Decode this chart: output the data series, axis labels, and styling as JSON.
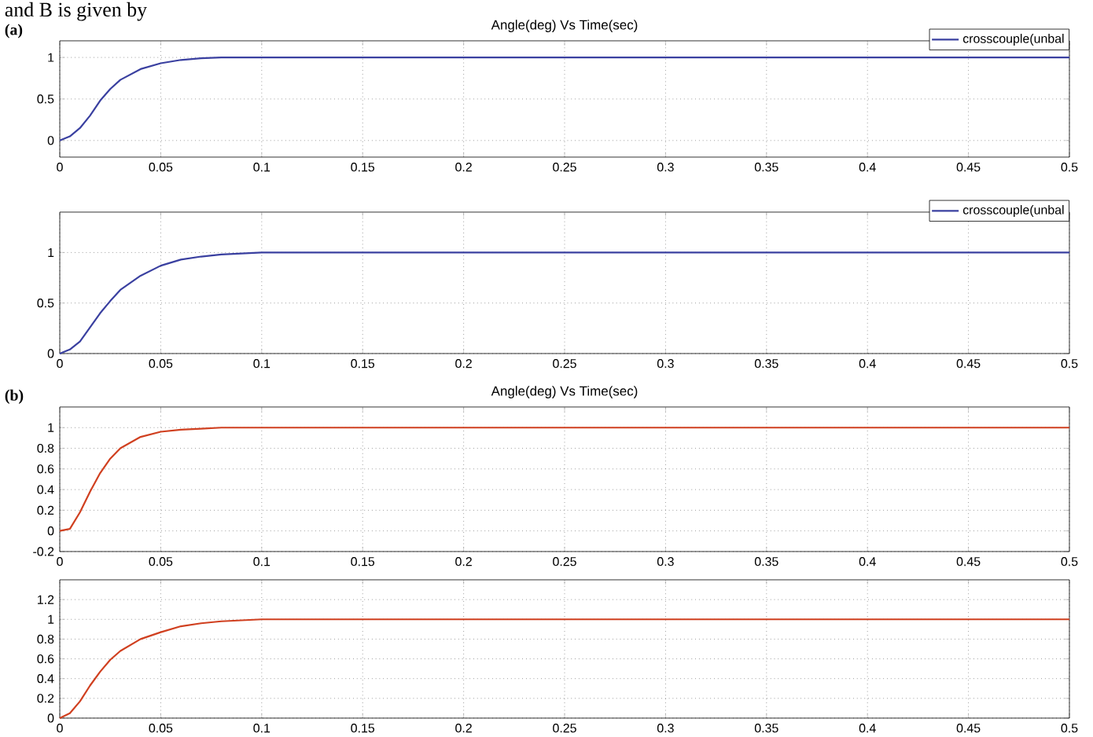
{
  "chart_data": [
    {
      "type": "line",
      "title": "Angle(deg) Vs Time(sec)",
      "annotations": [
        "and B is given by",
        "(a)"
      ],
      "x": [
        0,
        0.005,
        0.01,
        0.015,
        0.02,
        0.025,
        0.03,
        0.04,
        0.05,
        0.06,
        0.07,
        0.08,
        0.1,
        0.15,
        0.5
      ],
      "series": [
        {
          "name": "crosscouple(unbal",
          "color": "#3a40a0",
          "values": [
            0,
            0.05,
            0.15,
            0.3,
            0.48,
            0.62,
            0.73,
            0.86,
            0.93,
            0.97,
            0.99,
            1.0,
            1.0,
            1.0,
            1.0
          ]
        }
      ],
      "xlim": [
        0,
        0.5
      ],
      "ylim": [
        -0.2,
        1.2
      ],
      "xticks": [
        0,
        0.05,
        0.1,
        0.15,
        0.2,
        0.25,
        0.3,
        0.35,
        0.4,
        0.45,
        0.5
      ],
      "yticks": [
        0,
        0.5,
        1
      ],
      "grid": true,
      "legend": "top right"
    },
    {
      "type": "line",
      "x": [
        0,
        0.005,
        0.01,
        0.015,
        0.02,
        0.025,
        0.03,
        0.04,
        0.05,
        0.06,
        0.07,
        0.08,
        0.1,
        0.15,
        0.5
      ],
      "series": [
        {
          "name": "crosscouple(unbal",
          "color": "#3a40a0",
          "values": [
            0,
            0.04,
            0.12,
            0.26,
            0.4,
            0.52,
            0.63,
            0.77,
            0.87,
            0.93,
            0.96,
            0.98,
            1.0,
            1.0,
            1.0
          ]
        }
      ],
      "xlim": [
        0,
        0.5
      ],
      "ylim": [
        0,
        1.4
      ],
      "xticks": [
        0,
        0.05,
        0.1,
        0.15,
        0.2,
        0.25,
        0.3,
        0.35,
        0.4,
        0.45,
        0.5
      ],
      "yticks": [
        0,
        0.5,
        1
      ],
      "grid": true,
      "legend": "top right"
    },
    {
      "type": "line",
      "title": "Angle(deg) Vs Time(sec)",
      "annotations": [
        "(b)"
      ],
      "x": [
        0,
        0.005,
        0.01,
        0.015,
        0.02,
        0.025,
        0.03,
        0.04,
        0.05,
        0.06,
        0.07,
        0.08,
        0.1,
        0.15,
        0.5
      ],
      "series": [
        {
          "color": "#d04020",
          "values": [
            0,
            0.02,
            0.18,
            0.38,
            0.56,
            0.7,
            0.8,
            0.91,
            0.96,
            0.98,
            0.99,
            1.0,
            1.0,
            1.0,
            1.0
          ]
        }
      ],
      "xlim": [
        0,
        0.5
      ],
      "ylim": [
        -0.2,
        1.2
      ],
      "xticks": [
        0,
        0.05,
        0.1,
        0.15,
        0.2,
        0.25,
        0.3,
        0.35,
        0.4,
        0.45,
        0.5
      ],
      "yticks": [
        -0.2,
        0,
        0.2,
        0.4,
        0.6,
        0.8,
        1
      ],
      "grid": true
    },
    {
      "type": "line",
      "x": [
        0,
        0.005,
        0.01,
        0.015,
        0.02,
        0.025,
        0.03,
        0.04,
        0.05,
        0.06,
        0.07,
        0.08,
        0.1,
        0.15,
        0.5
      ],
      "series": [
        {
          "color": "#d04020",
          "values": [
            0,
            0.05,
            0.17,
            0.33,
            0.47,
            0.59,
            0.68,
            0.8,
            0.87,
            0.93,
            0.96,
            0.98,
            1.0,
            1.0,
            1.0
          ]
        }
      ],
      "xlim": [
        0,
        0.5
      ],
      "ylim": [
        0,
        1.4
      ],
      "xticks": [
        0,
        0.05,
        0.1,
        0.15,
        0.2,
        0.25,
        0.3,
        0.35,
        0.4,
        0.45,
        0.5
      ],
      "yticks": [
        0,
        0.2,
        0.4,
        0.6,
        0.8,
        1,
        1.2
      ],
      "grid": true
    }
  ]
}
